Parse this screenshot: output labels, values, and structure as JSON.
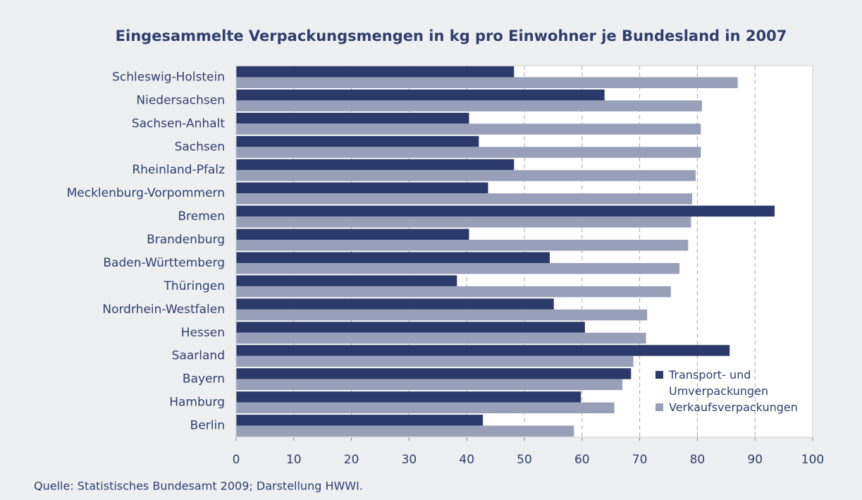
{
  "chart_data": {
    "type": "hbar",
    "title": "Eingesammelte Verpackungsmengen in kg pro Einwohner je Bundesland in 2007",
    "source": "Quelle: Statistisches Bundesamt 2009; Darstellung HWWI.",
    "categories": [
      "Schleswig-Holstein",
      "Niedersachsen",
      "Sachsen-Anhalt",
      "Sachsen",
      "Rheinland-Pfalz",
      "Mecklenburg-Vorpommern",
      "Bremen",
      "Brandenburg",
      "Baden-Württemberg",
      "Thüringen",
      "Nordrhein-Westfalen",
      "Hessen",
      "Saarland",
      "Bayern",
      "Hamburg",
      "Berlin"
    ],
    "series": [
      {
        "name": "Transport- und Umverpackungen",
        "color": "#2b3a6b",
        "values": [
          48.2,
          63.9,
          40.4,
          42.1,
          48.2,
          43.7,
          93.4,
          40.4,
          54.4,
          38.3,
          55.1,
          60.5,
          85.6,
          68.5,
          59.8,
          42.8
        ]
      },
      {
        "name": "Verkaufsverpackungen",
        "color": "#97a0b8",
        "values": [
          87.0,
          80.8,
          80.6,
          80.6,
          79.7,
          79.1,
          78.9,
          78.4,
          76.9,
          75.4,
          71.3,
          71.1,
          68.9,
          67.0,
          65.6,
          58.6
        ]
      }
    ],
    "xlim": [
      0,
      100
    ],
    "xticks": [
      0,
      10,
      20,
      30,
      40,
      50,
      60,
      70,
      80,
      90,
      100
    ],
    "grid": true,
    "legend": "lower right"
  }
}
